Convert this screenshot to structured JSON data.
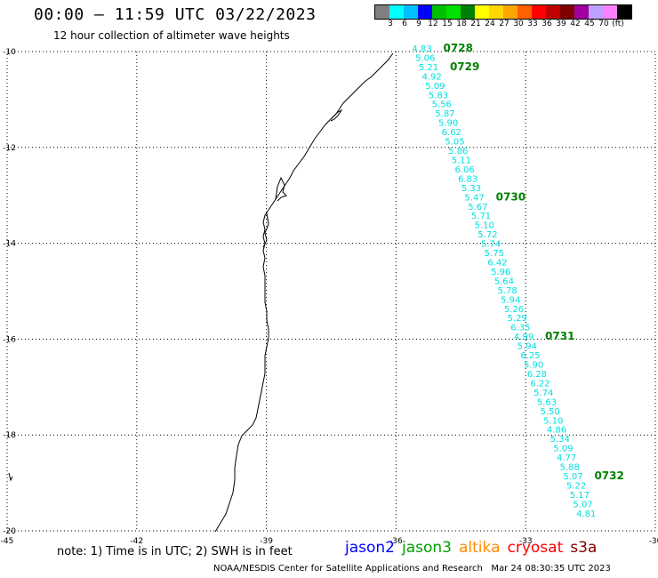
{
  "header": {
    "title": "00:00 — 11:59 UTC 03/22/2023",
    "subtitle": "12 hour collection of altimeter wave heights"
  },
  "colorbar": {
    "swatches": [
      "#808080",
      "#00ffff",
      "#00bfff",
      "#0000ff",
      "#00c000",
      "#00e000",
      "#008000",
      "#ffff00",
      "#ffd700",
      "#ffa500",
      "#ff6000",
      "#ff0000",
      "#c00000",
      "#800000",
      "#a000a0",
      "#c0a0ff",
      "#ff80ff",
      "#000000"
    ],
    "labels": [
      "3",
      "6",
      "9",
      "12",
      "15",
      "18",
      "21",
      "24",
      "27",
      "30",
      "33",
      "36",
      "39",
      "42",
      "45",
      "70",
      "(ft)"
    ]
  },
  "map": {
    "lon_ticks": [
      -45,
      -42,
      -39,
      -36,
      -33,
      -30
    ],
    "lon_labels": [
      "-45",
      "-42",
      "-39",
      "-36",
      "-33",
      "-30"
    ],
    "lat_ticks": [
      -10,
      -12,
      -14,
      -16,
      -18,
      -20
    ],
    "lat_labels": [
      "-10",
      "-12",
      "-14",
      "-16",
      "-18",
      "-20"
    ],
    "lon_range": [
      -45,
      -30
    ],
    "lat_range": [
      -10,
      -20
    ],
    "grid": "dotted",
    "swh_color": "#00e0e0",
    "pass_color": "#008000",
    "swh_values": [
      "4.83",
      "5.06",
      "5.21",
      "4.92",
      "5.09",
      "5.83",
      "5.56",
      "5.87",
      "5.90",
      "6.62",
      "5.05",
      "5.86",
      "5.11",
      "6.06",
      "6.83",
      "5.33",
      "5.47",
      "5.67",
      "5.71",
      "5.10",
      "5.72",
      "5.74",
      "5.75",
      "6.42",
      "5.96",
      "5.64",
      "5.78",
      "5.94",
      "5.26",
      "5.29",
      "6.35",
      "4.99",
      "5.94",
      "6.25",
      "5.90",
      "6.28",
      "6.22",
      "5.74",
      "5.63",
      "5.50",
      "5.10",
      "4.86",
      "5.34",
      "5.09",
      "4.77",
      "5.88",
      "5.07",
      "5.22",
      "5.17",
      "5.07",
      "4.81"
    ],
    "passes": [
      {
        "label": "0728",
        "index": 0
      },
      {
        "label": "0729",
        "index": 2
      },
      {
        "label": "0730",
        "index": 16
      },
      {
        "label": "0731",
        "index": 31
      },
      {
        "label": "0732",
        "index": 46
      }
    ]
  },
  "footer": {
    "note": "note: 1) Time is in UTC; 2) SWH is in feet",
    "legend": [
      {
        "name": "jason2",
        "color": "#0000ff"
      },
      {
        "name": "jason3",
        "color": "#00a000"
      },
      {
        "name": "altika",
        "color": "#ff8c00"
      },
      {
        "name": "cryosat",
        "color": "#ff0000"
      },
      {
        "name": "s3a",
        "color": "#800000"
      }
    ],
    "credit": "NOAA/NESDIS Center for Satellite Applications and Research   Mar 24 08:30:35 UTC 2023"
  }
}
